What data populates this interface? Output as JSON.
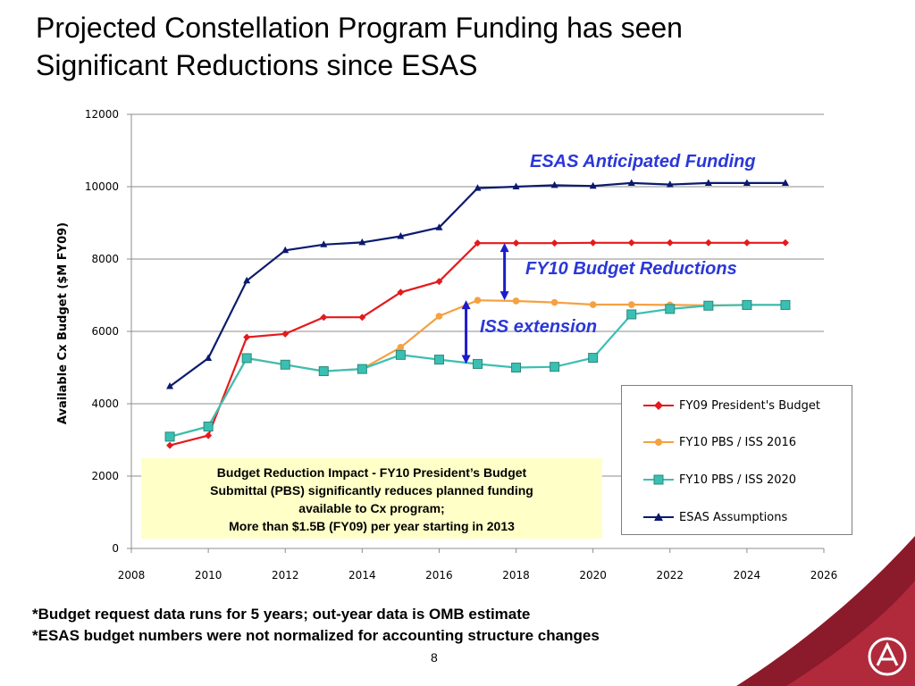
{
  "slide": {
    "title_line1": "Projected Constellation Program Funding has seen",
    "title_line2": "Significant Reductions since ESAS",
    "page_number": "8"
  },
  "annotations": {
    "esas": "ESAS Anticipated Funding",
    "fy10": "FY10 Budget Reductions",
    "iss": "ISS extension"
  },
  "note_box": {
    "line1": "Budget Reduction Impact  - FY10 President’s Budget",
    "line2": "Submittal (PBS) significantly reduces planned funding",
    "line3": "available to Cx program;",
    "line4": "More than $1.5B (FY09) per year starting in 2013"
  },
  "footnotes": {
    "line1": "*Budget request data runs for 5 years; out-year data is OMB estimate",
    "line2": "*ESAS budget numbers were not normalized for accounting structure changes"
  },
  "chart_data": {
    "type": "line",
    "ylabel": "Available Cx Budget ($M FY09)",
    "xlabel": "",
    "xlim": [
      2008,
      2026
    ],
    "ylim": [
      0,
      12000
    ],
    "x_ticks": [
      2008,
      2010,
      2012,
      2014,
      2016,
      2018,
      2020,
      2022,
      2024,
      2026
    ],
    "y_ticks": [
      0,
      2000,
      4000,
      6000,
      8000,
      10000,
      12000
    ],
    "grid": "horizontal",
    "legend_position": "bottom-right",
    "series": [
      {
        "name": "FY09 President's Budget",
        "color": "#e41a1c",
        "marker": "diamond",
        "x": [
          2009,
          2010,
          2011,
          2012,
          2013,
          2014,
          2015,
          2016,
          2017,
          2018,
          2019,
          2020,
          2021,
          2022,
          2023,
          2024,
          2025
        ],
        "y": [
          2850,
          3120,
          5840,
          5930,
          6390,
          6390,
          7080,
          7380,
          8440,
          8440,
          8440,
          8450,
          8450,
          8450,
          8450,
          8450,
          8450
        ]
      },
      {
        "name": "FY10 PBS / ISS 2016",
        "color": "#f5a142",
        "marker": "circle",
        "x": [
          2009,
          2010,
          2011,
          2012,
          2013,
          2014,
          2015,
          2016,
          2017,
          2018,
          2019,
          2020,
          2021,
          2022,
          2023,
          2024,
          2025
        ],
        "y": [
          3090,
          3370,
          5260,
          5080,
          4900,
          4960,
          5560,
          6420,
          6860,
          6840,
          6800,
          6740,
          6740,
          6730,
          6720,
          6730,
          6730
        ]
      },
      {
        "name": "FY10 PBS / ISS 2020",
        "color": "#3bbfb4",
        "marker": "square",
        "x": [
          2009,
          2010,
          2011,
          2012,
          2013,
          2014,
          2015,
          2016,
          2017,
          2018,
          2019,
          2020,
          2021,
          2022,
          2023,
          2024,
          2025
        ],
        "y": [
          3090,
          3370,
          5260,
          5080,
          4900,
          4960,
          5350,
          5220,
          5100,
          5000,
          5020,
          5270,
          6470,
          6620,
          6710,
          6730,
          6730
        ]
      },
      {
        "name": "ESAS Assumptions",
        "color": "#0b1a6e",
        "marker": "triangle",
        "x": [
          2009,
          2010,
          2011,
          2012,
          2013,
          2014,
          2015,
          2016,
          2017,
          2018,
          2019,
          2020,
          2021,
          2022,
          2023,
          2024,
          2025
        ],
        "y": [
          4480,
          5260,
          7400,
          8240,
          8400,
          8460,
          8630,
          8870,
          9960,
          10000,
          10040,
          10020,
          10100,
          10060,
          10100,
          10100,
          10100
        ]
      }
    ]
  }
}
